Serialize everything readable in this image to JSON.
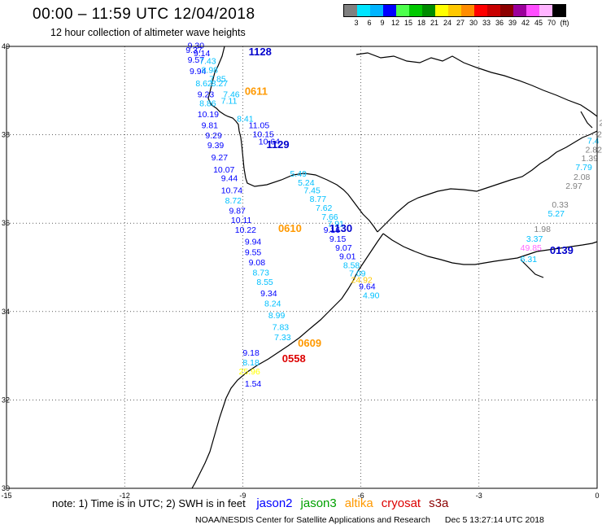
{
  "header": {
    "title": "00:00 – 11:59 UTC 12/04/2018",
    "subtitle": "12 hour collection of altimeter wave heights"
  },
  "colorbar": {
    "colors": [
      "#808080",
      "#00e5ff",
      "#00b4ff",
      "#0000ff",
      "#4dff4d",
      "#00c800",
      "#008c00",
      "#ffff00",
      "#ffc800",
      "#ff8c00",
      "#ff0000",
      "#c80000",
      "#8c0000",
      "#9b009b",
      "#ff4dff",
      "#ffb4ff",
      "#000000"
    ],
    "labels": [
      "3",
      "6",
      "9",
      "12",
      "15",
      "18",
      "21",
      "24",
      "27",
      "30",
      "33",
      "36",
      "39",
      "42",
      "45",
      "70",
      "(ft)"
    ]
  },
  "map": {
    "lon_ticks": [
      "-15",
      "-12",
      "-9",
      "-6",
      "-3",
      "0"
    ],
    "lat_ticks": [
      "40",
      "38",
      "36",
      "34",
      "32",
      "30"
    ],
    "pass_labels": [
      {
        "text": "1128",
        "color": "#0000cc",
        "lon": -8.85,
        "lat": 39.8
      },
      {
        "text": "0611",
        "color": "#ff9900",
        "lon": -8.95,
        "lat": 38.9
      },
      {
        "text": "1129",
        "color": "#0000cc",
        "lon": -8.4,
        "lat": 37.7
      },
      {
        "text": "1130",
        "color": "#0000cc",
        "lon": -6.8,
        "lat": 35.8
      },
      {
        "text": "0610",
        "color": "#ff9900",
        "lon": -8.1,
        "lat": 35.8
      },
      {
        "text": "0609",
        "color": "#ff9900",
        "lon": -7.6,
        "lat": 33.2
      },
      {
        "text": "0558",
        "color": "#dd0000",
        "lon": -8.0,
        "lat": 32.85
      },
      {
        "text": "0139",
        "color": "#0000cc",
        "lon": -1.2,
        "lat": 35.3
      }
    ],
    "wave_heights": [
      {
        "v": "9.30",
        "c": "#0000ff",
        "lon": -10.4,
        "lat": 39.95
      },
      {
        "v": "9.37",
        "c": "#0000ff",
        "lon": -10.45,
        "lat": 39.85
      },
      {
        "v": "9.14",
        "c": "#0000ff",
        "lon": -10.25,
        "lat": 39.78
      },
      {
        "v": "9.57",
        "c": "#0000ff",
        "lon": -10.4,
        "lat": 39.63
      },
      {
        "v": "7.43",
        "c": "#00c0ff",
        "lon": -10.1,
        "lat": 39.6
      },
      {
        "v": "9.94",
        "c": "#0000ff",
        "lon": -10.35,
        "lat": 39.37
      },
      {
        "v": "8.98",
        "c": "#00c0ff",
        "lon": -10.05,
        "lat": 39.4
      },
      {
        "v": "7.85",
        "c": "#00c0ff",
        "lon": -9.85,
        "lat": 39.2
      },
      {
        "v": "8.62",
        "c": "#00c0ff",
        "lon": -10.2,
        "lat": 39.1
      },
      {
        "v": "8.27",
        "c": "#00c0ff",
        "lon": -9.8,
        "lat": 39.1
      },
      {
        "v": "9.23",
        "c": "#0000ff",
        "lon": -10.15,
        "lat": 38.85
      },
      {
        "v": "7.46",
        "c": "#00c0ff",
        "lon": -9.5,
        "lat": 38.85
      },
      {
        "v": "8.86",
        "c": "#00c0ff",
        "lon": -10.1,
        "lat": 38.65
      },
      {
        "v": "7.11",
        "c": "#00c0ff",
        "lon": -9.55,
        "lat": 38.7
      },
      {
        "v": "10.19",
        "c": "#0000ff",
        "lon": -10.15,
        "lat": 38.4
      },
      {
        "v": "8.41",
        "c": "#00c0ff",
        "lon": -9.15,
        "lat": 38.3
      },
      {
        "v": "9.81",
        "c": "#0000ff",
        "lon": -10.05,
        "lat": 38.15
      },
      {
        "v": "11.05",
        "c": "#0000ff",
        "lon": -8.85,
        "lat": 38.15
      },
      {
        "v": "9.29",
        "c": "#0000ff",
        "lon": -9.95,
        "lat": 37.92
      },
      {
        "v": "10.15",
        "c": "#0000ff",
        "lon": -8.75,
        "lat": 37.95
      },
      {
        "v": "10.64",
        "c": "#0000ff",
        "lon": -8.6,
        "lat": 37.78
      },
      {
        "v": "9.39",
        "c": "#0000ff",
        "lon": -9.9,
        "lat": 37.7
      },
      {
        "v": "9.27",
        "c": "#0000ff",
        "lon": -9.8,
        "lat": 37.42
      },
      {
        "v": "10.07",
        "c": "#0000ff",
        "lon": -9.75,
        "lat": 37.15
      },
      {
        "v": "5.49",
        "c": "#00c0ff",
        "lon": -7.8,
        "lat": 37.05
      },
      {
        "v": "9.44",
        "c": "#0000ff",
        "lon": -9.55,
        "lat": 36.95
      },
      {
        "v": "5.24",
        "c": "#00c0ff",
        "lon": -7.6,
        "lat": 36.85
      },
      {
        "v": "10.74",
        "c": "#0000ff",
        "lon": -9.55,
        "lat": 36.68
      },
      {
        "v": "7.45",
        "c": "#00c0ff",
        "lon": -7.45,
        "lat": 36.68
      },
      {
        "v": "8.72",
        "c": "#00c0ff",
        "lon": -9.45,
        "lat": 36.45
      },
      {
        "v": "8.77",
        "c": "#00c0ff",
        "lon": -7.3,
        "lat": 36.48
      },
      {
        "v": "9.87",
        "c": "#0000ff",
        "lon": -9.35,
        "lat": 36.22
      },
      {
        "v": "7.62",
        "c": "#00c0ff",
        "lon": -7.15,
        "lat": 36.28
      },
      {
        "v": "10.11",
        "c": "#0000ff",
        "lon": -9.3,
        "lat": 36.0
      },
      {
        "v": "7.66",
        "c": "#00c0ff",
        "lon": -7.0,
        "lat": 36.08
      },
      {
        "v": "7.91",
        "c": "#00c0ff",
        "lon": -6.85,
        "lat": 35.92
      },
      {
        "v": "10.22",
        "c": "#0000ff",
        "lon": -9.2,
        "lat": 35.78
      },
      {
        "v": "9.16",
        "c": "#0000ff",
        "lon": -6.95,
        "lat": 35.78
      },
      {
        "v": "9.94",
        "c": "#0000ff",
        "lon": -8.95,
        "lat": 35.52
      },
      {
        "v": "9.15",
        "c": "#0000ff",
        "lon": -6.8,
        "lat": 35.58
      },
      {
        "v": "9.07",
        "c": "#0000ff",
        "lon": -6.65,
        "lat": 35.38
      },
      {
        "v": "9.55",
        "c": "#0000ff",
        "lon": -8.95,
        "lat": 35.28
      },
      {
        "v": "9.01",
        "c": "#0000ff",
        "lon": -6.55,
        "lat": 35.18
      },
      {
        "v": "9.08",
        "c": "#0000ff",
        "lon": -8.85,
        "lat": 35.05
      },
      {
        "v": "8.58",
        "c": "#00c0ff",
        "lon": -6.45,
        "lat": 34.98
      },
      {
        "v": "8.73",
        "c": "#00c0ff",
        "lon": -8.75,
        "lat": 34.82
      },
      {
        "v": "7.09",
        "c": "#00c0ff",
        "lon": -6.3,
        "lat": 34.8
      },
      {
        "v": "24.92",
        "c": "#ffc800",
        "lon": -6.25,
        "lat": 34.65
      },
      {
        "v": "8.55",
        "c": "#00c0ff",
        "lon": -8.65,
        "lat": 34.6
      },
      {
        "v": "9.64",
        "c": "#0000ff",
        "lon": -6.05,
        "lat": 34.5
      },
      {
        "v": "9.34",
        "c": "#0000ff",
        "lon": -8.55,
        "lat": 34.35
      },
      {
        "v": "4.90",
        "c": "#00c0ff",
        "lon": -5.95,
        "lat": 34.3
      },
      {
        "v": "8.24",
        "c": "#00c0ff",
        "lon": -8.45,
        "lat": 34.12
      },
      {
        "v": "8.99",
        "c": "#00c0ff",
        "lon": -8.35,
        "lat": 33.85
      },
      {
        "v": "7.83",
        "c": "#00c0ff",
        "lon": -8.25,
        "lat": 33.58
      },
      {
        "v": "7.33",
        "c": "#00c0ff",
        "lon": -8.2,
        "lat": 33.35
      },
      {
        "v": "9.18",
        "c": "#0000ff",
        "lon": -9.0,
        "lat": 33.0
      },
      {
        "v": "8.18",
        "c": "#00c0ff",
        "lon": -9.0,
        "lat": 32.78
      },
      {
        "v": "25.96",
        "c": "#ffff00",
        "lon": -9.1,
        "lat": 32.58
      },
      {
        "v": "1.54",
        "c": "#0000ff",
        "lon": -8.95,
        "lat": 32.3
      },
      {
        "v": "2",
        "c": "#808080",
        "lon": 0.05,
        "lat": 38.2
      },
      {
        "v": "2",
        "c": "#808080",
        "lon": 0.0,
        "lat": 37.95
      },
      {
        "v": "7.4",
        "c": "#00c0ff",
        "lon": -0.25,
        "lat": 37.8
      },
      {
        "v": "2.82",
        "c": "#808080",
        "lon": -0.3,
        "lat": 37.6
      },
      {
        "v": "1.39",
        "c": "#808080",
        "lon": -0.4,
        "lat": 37.4
      },
      {
        "v": "7.79",
        "c": "#00c0ff",
        "lon": -0.55,
        "lat": 37.2
      },
      {
        "v": "2.08",
        "c": "#808080",
        "lon": -0.6,
        "lat": 36.98
      },
      {
        "v": "2.97",
        "c": "#808080",
        "lon": -0.8,
        "lat": 36.78
      },
      {
        "v": "0.33",
        "c": "#808080",
        "lon": -1.15,
        "lat": 36.35
      },
      {
        "v": "5.27",
        "c": "#00c0ff",
        "lon": -1.25,
        "lat": 36.15
      },
      {
        "v": "1.98",
        "c": "#808080",
        "lon": -1.6,
        "lat": 35.8
      },
      {
        "v": "3.37",
        "c": "#00c0ff",
        "lon": -1.8,
        "lat": 35.58
      },
      {
        "v": "49.85",
        "c": "#ff66ff",
        "lon": -1.95,
        "lat": 35.38
      },
      {
        "v": "6.31",
        "c": "#00c0ff",
        "lon": -1.95,
        "lat": 35.12
      }
    ]
  },
  "footer": {
    "note": "note:  1) Time is in UTC;  2) SWH is in feet",
    "satellites": [
      {
        "name": "jason2",
        "color": "#0000ff"
      },
      {
        "name": "jason3",
        "color": "#00a000"
      },
      {
        "name": "altika",
        "color": "#ff9900"
      },
      {
        "name": "cryosat",
        "color": "#dd0000"
      },
      {
        "name": "s3a",
        "color": "#8b0000"
      }
    ],
    "credit": "NOAA/NESDIS Center for Satellite Applications and Research",
    "timestamp": "Dec  5 13:27:14 UTC 2018"
  }
}
